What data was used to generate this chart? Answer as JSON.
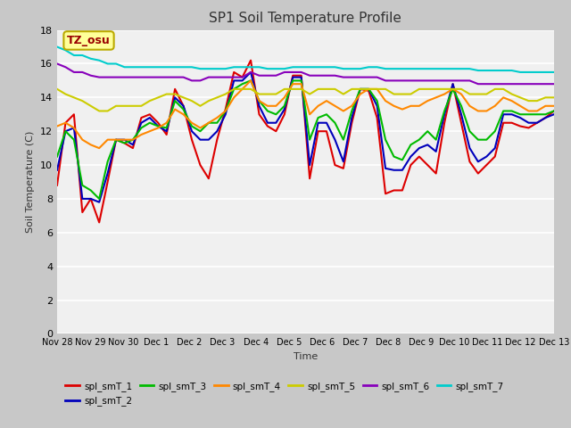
{
  "title": "SP1 Soil Temperature Profile",
  "xlabel": "Time",
  "ylabel": "Soil Temperature (C)",
  "ylim": [
    0,
    18
  ],
  "yticks": [
    0,
    2,
    4,
    6,
    8,
    10,
    12,
    14,
    16,
    18
  ],
  "fig_bg_color": "#c8c8c8",
  "plot_bg": "#f0f0f0",
  "annotation_text": "TZ_osu",
  "annotation_color": "#990000",
  "annotation_bg": "#ffff99",
  "annotation_border": "#bbaa00",
  "series_colors": {
    "spl_smT_1": "#dd0000",
    "spl_smT_2": "#0000bb",
    "spl_smT_3": "#00bb00",
    "spl_smT_4": "#ff8800",
    "spl_smT_5": "#cccc00",
    "spl_smT_6": "#8800bb",
    "spl_smT_7": "#00cccc"
  },
  "spl_smT_1": [
    8.8,
    12.5,
    13.0,
    7.2,
    8.0,
    6.6,
    9.0,
    11.5,
    11.3,
    11.0,
    12.8,
    13.0,
    12.5,
    11.8,
    14.5,
    13.5,
    11.5,
    10.0,
    9.2,
    11.5,
    13.3,
    15.5,
    15.2,
    16.2,
    13.0,
    12.3,
    12.0,
    13.0,
    15.3,
    15.3,
    9.2,
    12.0,
    12.0,
    10.0,
    9.8,
    12.5,
    14.5,
    14.4,
    12.8,
    8.3,
    8.5,
    8.5,
    10.0,
    10.5,
    10.0,
    9.5,
    12.5,
    14.8,
    12.5,
    10.2,
    9.5,
    10.0,
    10.5,
    12.5,
    12.5,
    12.3,
    12.2,
    12.5,
    12.8,
    13.2
  ],
  "spl_smT_2": [
    9.7,
    12.0,
    12.2,
    8.0,
    8.0,
    7.8,
    9.5,
    11.5,
    11.5,
    11.2,
    12.5,
    12.8,
    12.3,
    12.0,
    14.0,
    13.5,
    12.0,
    11.5,
    11.5,
    12.0,
    13.0,
    15.0,
    15.0,
    15.5,
    13.5,
    12.5,
    12.5,
    13.3,
    15.2,
    15.2,
    10.0,
    12.5,
    12.5,
    11.5,
    10.2,
    12.8,
    14.5,
    14.5,
    13.5,
    9.8,
    9.7,
    9.7,
    10.5,
    11.0,
    11.2,
    10.8,
    13.0,
    14.8,
    13.0,
    11.0,
    10.2,
    10.5,
    11.0,
    13.0,
    13.0,
    12.8,
    12.5,
    12.5,
    12.8,
    13.0
  ],
  "spl_smT_3": [
    10.5,
    12.0,
    11.5,
    8.8,
    8.5,
    8.0,
    10.2,
    11.5,
    11.3,
    11.5,
    12.2,
    12.5,
    12.3,
    12.2,
    13.8,
    13.3,
    12.3,
    12.0,
    12.5,
    12.5,
    13.2,
    14.5,
    14.8,
    15.0,
    13.8,
    13.2,
    13.0,
    13.5,
    15.0,
    15.0,
    11.5,
    12.8,
    13.0,
    12.5,
    11.5,
    13.2,
    14.5,
    14.5,
    13.8,
    11.5,
    10.5,
    10.3,
    11.2,
    11.5,
    12.0,
    11.5,
    13.2,
    14.5,
    13.5,
    12.0,
    11.5,
    11.5,
    12.0,
    13.2,
    13.2,
    13.0,
    13.0,
    13.0,
    13.0,
    13.2
  ],
  "spl_smT_4": [
    12.3,
    12.5,
    12.2,
    11.5,
    11.2,
    11.0,
    11.5,
    11.5,
    11.5,
    11.5,
    11.8,
    12.0,
    12.2,
    12.5,
    13.3,
    13.0,
    12.5,
    12.2,
    12.5,
    12.8,
    13.2,
    14.0,
    14.5,
    15.0,
    13.8,
    13.5,
    13.5,
    14.0,
    14.8,
    14.8,
    13.0,
    13.5,
    13.8,
    13.5,
    13.2,
    13.5,
    14.2,
    14.5,
    14.5,
    13.8,
    13.5,
    13.3,
    13.5,
    13.5,
    13.8,
    14.0,
    14.2,
    14.5,
    14.2,
    13.5,
    13.2,
    13.2,
    13.5,
    14.0,
    13.8,
    13.5,
    13.2,
    13.2,
    13.5,
    13.5
  ],
  "spl_smT_5": [
    14.5,
    14.2,
    14.0,
    13.8,
    13.5,
    13.2,
    13.2,
    13.5,
    13.5,
    13.5,
    13.5,
    13.8,
    14.0,
    14.2,
    14.2,
    14.0,
    13.8,
    13.5,
    13.8,
    14.0,
    14.2,
    14.5,
    14.5,
    14.5,
    14.2,
    14.2,
    14.2,
    14.5,
    14.5,
    14.5,
    14.2,
    14.5,
    14.5,
    14.5,
    14.2,
    14.5,
    14.5,
    14.5,
    14.5,
    14.5,
    14.2,
    14.2,
    14.2,
    14.5,
    14.5,
    14.5,
    14.5,
    14.5,
    14.5,
    14.2,
    14.2,
    14.2,
    14.5,
    14.5,
    14.2,
    14.0,
    13.8,
    13.8,
    14.0,
    14.0
  ],
  "spl_smT_6": [
    16.0,
    15.8,
    15.5,
    15.5,
    15.3,
    15.2,
    15.2,
    15.2,
    15.2,
    15.2,
    15.2,
    15.2,
    15.2,
    15.2,
    15.2,
    15.2,
    15.0,
    15.0,
    15.2,
    15.2,
    15.2,
    15.2,
    15.2,
    15.5,
    15.3,
    15.3,
    15.3,
    15.5,
    15.5,
    15.5,
    15.3,
    15.3,
    15.3,
    15.3,
    15.2,
    15.2,
    15.2,
    15.2,
    15.2,
    15.0,
    15.0,
    15.0,
    15.0,
    15.0,
    15.0,
    15.0,
    15.0,
    15.0,
    15.0,
    15.0,
    14.8,
    14.8,
    14.8,
    14.8,
    14.8,
    14.8,
    14.8,
    14.8,
    14.8,
    14.8
  ],
  "spl_smT_7": [
    17.0,
    16.8,
    16.5,
    16.5,
    16.3,
    16.2,
    16.0,
    16.0,
    15.8,
    15.8,
    15.8,
    15.8,
    15.8,
    15.8,
    15.8,
    15.8,
    15.8,
    15.7,
    15.7,
    15.7,
    15.7,
    15.8,
    15.8,
    15.8,
    15.8,
    15.7,
    15.7,
    15.7,
    15.8,
    15.8,
    15.8,
    15.8,
    15.8,
    15.8,
    15.7,
    15.7,
    15.7,
    15.8,
    15.8,
    15.7,
    15.7,
    15.7,
    15.7,
    15.7,
    15.7,
    15.7,
    15.7,
    15.7,
    15.7,
    15.7,
    15.6,
    15.6,
    15.6,
    15.6,
    15.6,
    15.5,
    15.5,
    15.5,
    15.5,
    15.5
  ],
  "x_tick_labels": [
    "Nov 28",
    "Nov 29",
    "Nov 30",
    "Dec 1",
    "Dec 2",
    "Dec 3",
    "Dec 4",
    "Dec 5",
    "Dec 6",
    "Dec 7",
    "Dec 8",
    "Dec 9",
    "Dec 10",
    "Dec 11",
    "Dec 12",
    "Dec 13"
  ]
}
